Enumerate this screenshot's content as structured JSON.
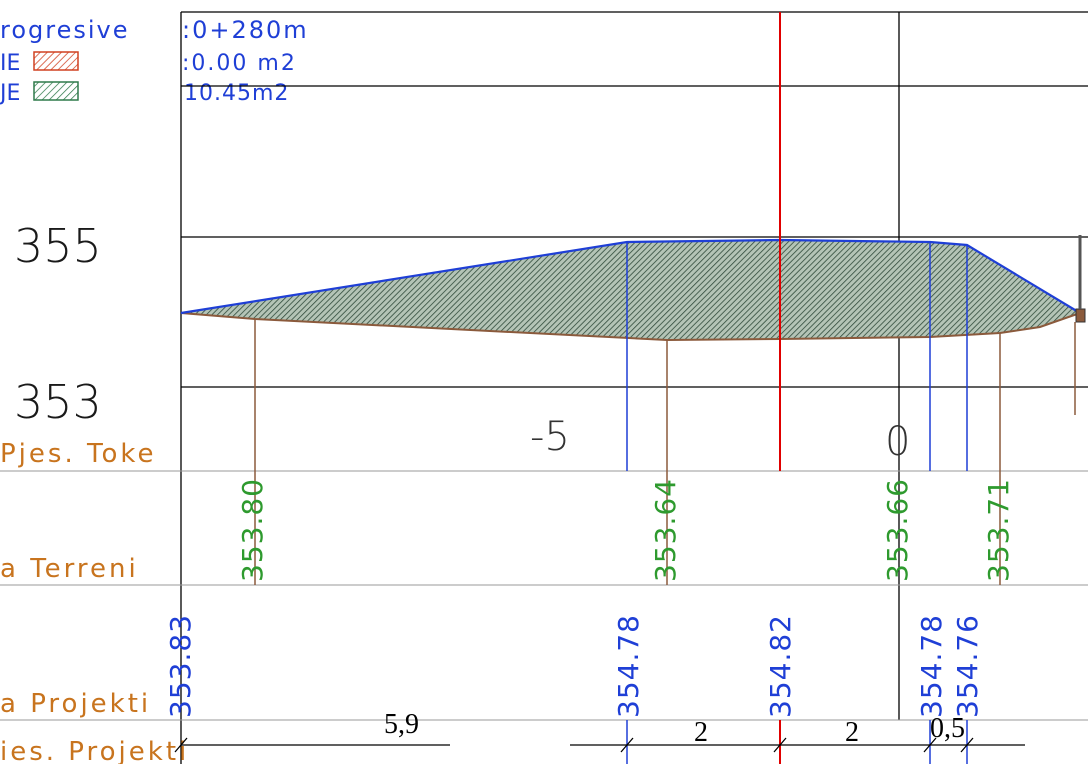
{
  "header": {
    "chainage_label": "rogresive",
    "chainage_value": ":0+280m",
    "cut_label": "IE",
    "cut_area": ":0.00  m2",
    "fill_label": "JE",
    "fill_area": "10.45m2"
  },
  "elevation_labels": [
    "355",
    "353"
  ],
  "offset_labels": [
    "-5",
    "0"
  ],
  "row_labels": {
    "terrain_distances": "Pjes. Toke",
    "terrain_elevations": "a Terreni",
    "design_elevations": "a Projekti",
    "design_distances": "ies. Projekti"
  },
  "terrain_elevations": [
    "353.80",
    "353.64",
    "353.66",
    "353.71"
  ],
  "design_elevations": [
    "353.83",
    "354.78",
    "354.82",
    "354.78",
    "354.76"
  ],
  "design_distances": [
    "5,9",
    "2",
    "2",
    "0,5"
  ],
  "colors": {
    "design_line": "#1f3fd6",
    "terrain_line": "#8b5a3c",
    "axis_line": "#e00000",
    "label_orange": "#c8741e",
    "terrain_text": "#2e9a2e",
    "design_text": "#1f3fd6",
    "cut_hatch": "#d04020",
    "fill_hatch": "#2e7a4a"
  }
}
